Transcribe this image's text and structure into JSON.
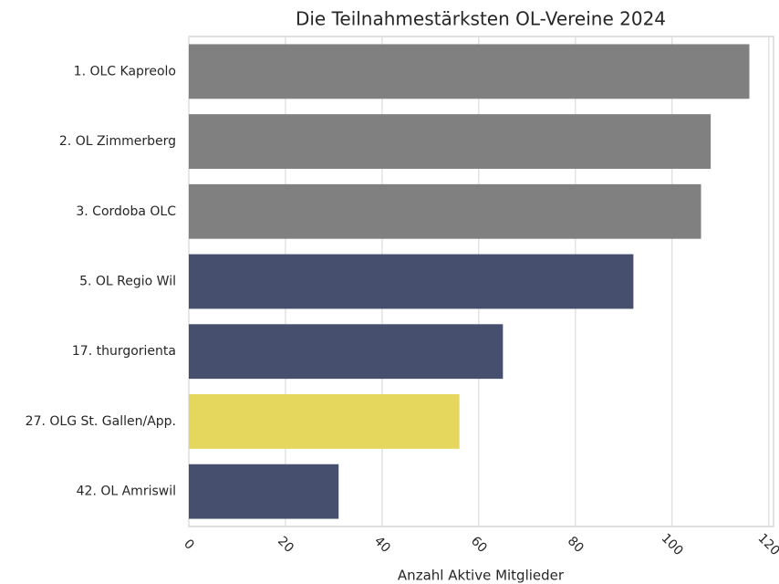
{
  "chart_data": {
    "type": "barh",
    "title": "Die Teilnahmestärksten OL-Vereine 2024",
    "xlabel": "Anzahl Aktive Mitglieder",
    "categories": [
      "1. OLC Kapreolo",
      "2. OL Zimmerberg",
      "3. Cordoba OLC",
      "5. OL Regio Wil",
      "17. thurgorienta",
      "27. OLG St. Gallen/App.",
      "42. OL Amriswil"
    ],
    "values": [
      116,
      108,
      106,
      92,
      65,
      56,
      31
    ],
    "colors": [
      "#808080",
      "#808080",
      "#808080",
      "#464f6e",
      "#464f6e",
      "#e5d75e",
      "#464f6e"
    ],
    "xlim": [
      0,
      121
    ],
    "xticks": [
      0,
      20,
      40,
      60,
      80,
      100,
      120
    ],
    "grid": true
  }
}
